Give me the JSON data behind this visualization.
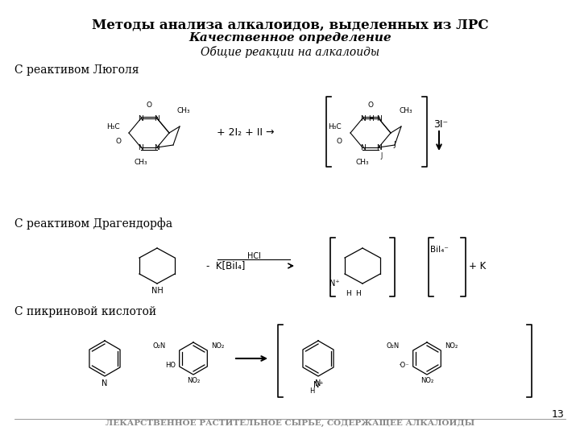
{
  "title_line1": "Методы анализа алкалоидов, выделенных из ЛРС",
  "title_line2": "Качественное определение",
  "title_line3": "Общие реакции на алкалоиды",
  "label1": "С реактивом Люголя",
  "label2": "С реактивом Драгендорфа",
  "label3": "С пикриновой кислотой",
  "footer": "ЛЕКАРСТВЕННОЕ РАСТИТЕЛЬНОЕ СЫРЬЕ, СОДЕРЖАЩЕЕ АЛКАЛОИДЫ",
  "page_num": "13",
  "bg_color": "#ffffff",
  "text_color": "#000000",
  "gray_color": "#888888",
  "reaction1_reagent": "+ 2I₂ + II →",
  "reaction1_bracket_right": "3I⁻",
  "reaction2_reagent": "-  K[BiI₄]  ——→",
  "reaction2_bracket_right": "+ K",
  "reaction3_arrow": "→"
}
